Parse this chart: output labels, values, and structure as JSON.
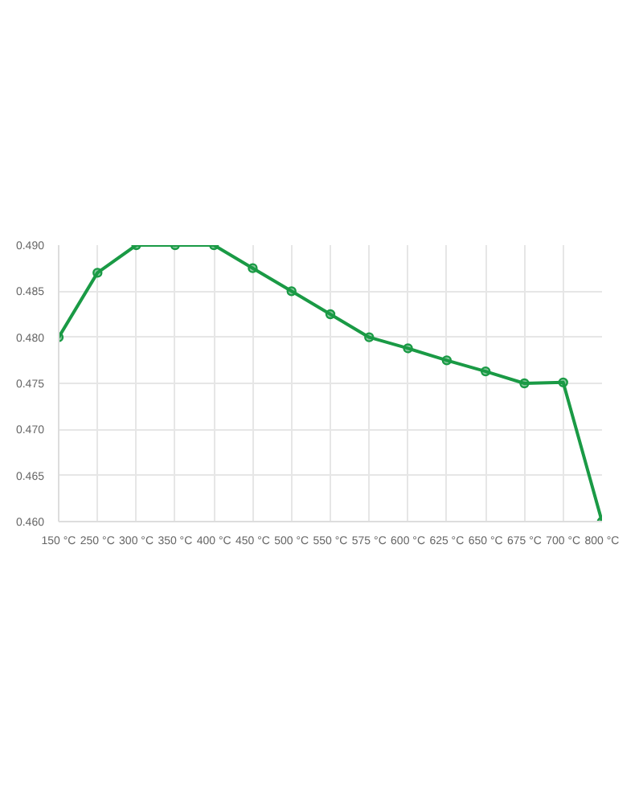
{
  "chart_data": {
    "type": "line",
    "categories": [
      "150 °C",
      "250 °C",
      "300 °C",
      "350 °C",
      "400 °C",
      "450 °C",
      "500 °C",
      "550 °C",
      "575 °C",
      "600 °C",
      "625 °C",
      "650 °C",
      "675 °C",
      "700 °C",
      "800 °C"
    ],
    "series": [
      {
        "color": "#1a9a45",
        "values": [
          0.48,
          0.487,
          0.49,
          0.49,
          0.49,
          0.4875,
          0.485,
          0.4825,
          0.48,
          0.4788,
          0.4775,
          0.4763,
          0.475,
          0.4751,
          0.46
        ]
      }
    ],
    "ylim": [
      0.46,
      0.49
    ],
    "yticks": [
      {
        "value": 0.46,
        "label": "0.460"
      },
      {
        "value": 0.465,
        "label": "0.465"
      },
      {
        "value": 0.47,
        "label": "0.470"
      },
      {
        "value": 0.475,
        "label": "0.475"
      },
      {
        "value": 0.48,
        "label": "0.480"
      },
      {
        "value": 0.485,
        "label": "0.485"
      },
      {
        "value": 0.49,
        "label": "0.490"
      }
    ],
    "grid": true,
    "marker": "circle",
    "line_style": "solid"
  }
}
